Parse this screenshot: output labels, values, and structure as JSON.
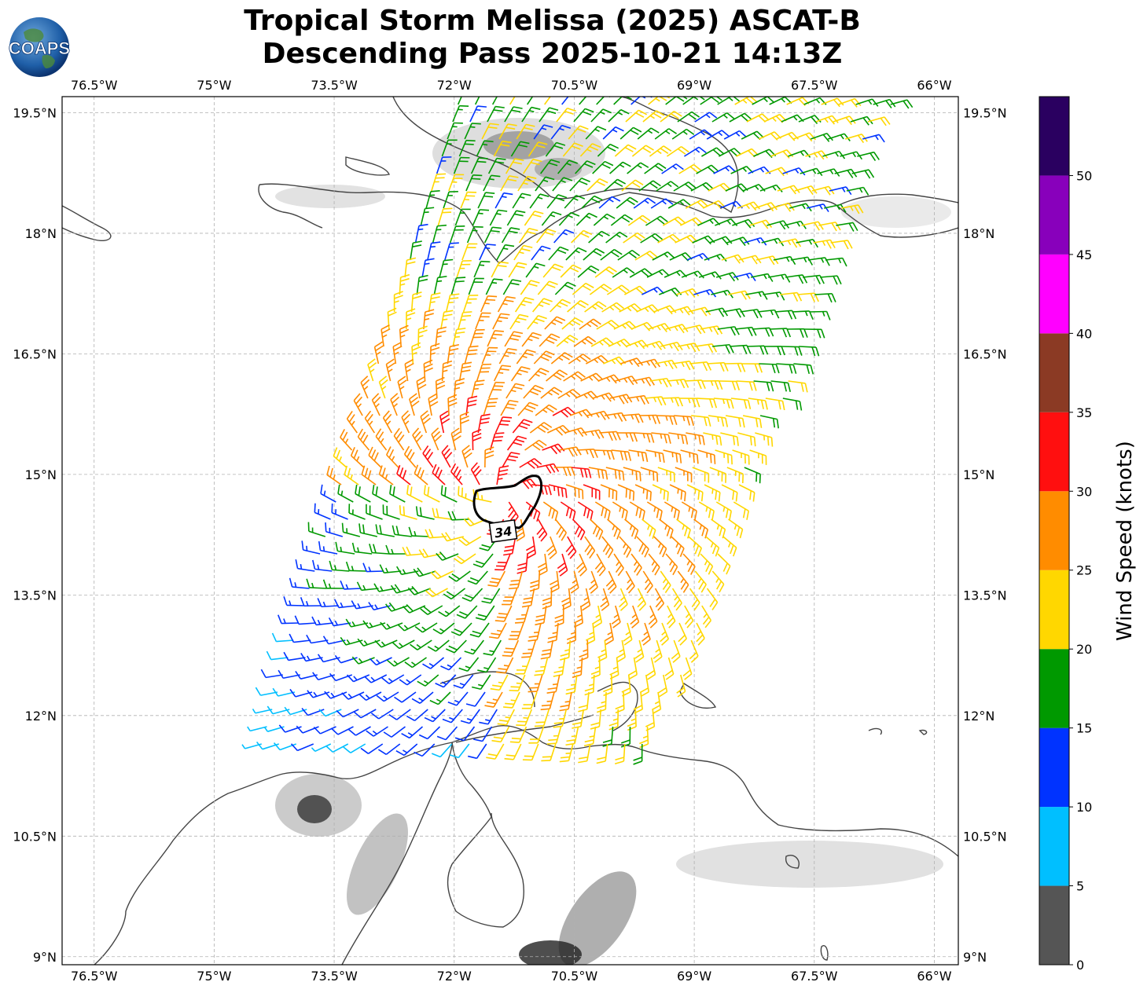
{
  "header": {
    "title_line1": "Tropical Storm Melissa (2025) ASCAT-B",
    "title_line2": "Descending Pass 2025-10-21 14:13Z",
    "logo_text": "COAPS"
  },
  "map": {
    "extent": {
      "lon_min": -76.9,
      "lon_max": -65.7,
      "lat_min": 8.9,
      "lat_max": 19.7
    },
    "lon_ticks": [
      {
        "value": -76.5,
        "label": "76.5°W"
      },
      {
        "value": -75.0,
        "label": "75°W"
      },
      {
        "value": -73.5,
        "label": "73.5°W"
      },
      {
        "value": -72.0,
        "label": "72°W"
      },
      {
        "value": -70.5,
        "label": "70.5°W"
      },
      {
        "value": -69.0,
        "label": "69°W"
      },
      {
        "value": -67.5,
        "label": "67.5°W"
      },
      {
        "value": -66.0,
        "label": "66°W"
      }
    ],
    "lat_ticks": [
      {
        "value": 19.5,
        "label": "19.5°N"
      },
      {
        "value": 18.0,
        "label": "18°N"
      },
      {
        "value": 16.5,
        "label": "16.5°N"
      },
      {
        "value": 15.0,
        "label": "15°N"
      },
      {
        "value": 13.5,
        "label": "13.5°N"
      },
      {
        "value": 12.0,
        "label": "12°N"
      },
      {
        "value": 10.5,
        "label": "10.5°N"
      },
      {
        "value": 9.0,
        "label": "9°N"
      }
    ],
    "wind_radius_label": "34",
    "storm_center": {
      "lon": -71.4,
      "lat": 14.7
    },
    "swath": {
      "north_lat": 19.7,
      "south_lat": 11.6,
      "north_west_lon": -72.0,
      "north_east_lon": -66.5,
      "south_west_lon": -74.5,
      "south_east_lon": -69.5
    }
  },
  "colorbar": {
    "title": "Wind Speed (knots)",
    "bins": [
      {
        "min": 0,
        "max": 5,
        "color": "#555555"
      },
      {
        "min": 5,
        "max": 10,
        "color": "#00bfff"
      },
      {
        "min": 10,
        "max": 15,
        "color": "#0033ff"
      },
      {
        "min": 15,
        "max": 20,
        "color": "#009900"
      },
      {
        "min": 20,
        "max": 25,
        "color": "#ffd700"
      },
      {
        "min": 25,
        "max": 30,
        "color": "#ff8c00"
      },
      {
        "min": 30,
        "max": 35,
        "color": "#ff0f0f"
      },
      {
        "min": 35,
        "max": 40,
        "color": "#8b3a24"
      },
      {
        "min": 40,
        "max": 45,
        "color": "#ff00ff"
      },
      {
        "min": 45,
        "max": 50,
        "color": "#8800bb"
      },
      {
        "min": 50,
        "max": 55,
        "color": "#2a0060"
      }
    ],
    "tick_labels": [
      "0",
      "5",
      "10",
      "15",
      "20",
      "25",
      "30",
      "35",
      "40",
      "45",
      "50"
    ]
  }
}
